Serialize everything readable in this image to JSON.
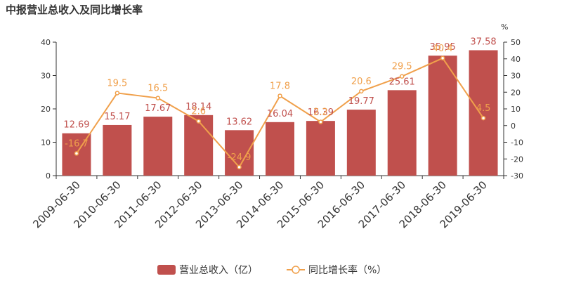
{
  "chart_data": {
    "type": "bar",
    "title": "中报营业总收入及同比增长率",
    "categories": [
      "2009-06-30",
      "2010-06-30",
      "2011-06-30",
      "2012-06-30",
      "2013-06-30",
      "2014-06-30",
      "2015-06-30",
      "2016-06-30",
      "2017-06-30",
      "2018-06-30",
      "2019-06-30"
    ],
    "series": [
      {
        "name": "营业总收入（亿）",
        "type": "bar",
        "axis": "left",
        "color": "#c0504d",
        "values": [
          12.69,
          15.17,
          17.67,
          18.14,
          13.62,
          16.04,
          16.39,
          19.77,
          25.61,
          35.95,
          37.58
        ],
        "labels": [
          "12.69",
          "15.17",
          "17.67",
          "18.14",
          "13.62",
          "16.04",
          "16.39",
          "19.77",
          "25.61",
          "35.95",
          "37.58"
        ]
      },
      {
        "name": "同比增长率（%）",
        "type": "line",
        "axis": "right",
        "color": "#f0a04b",
        "values": [
          -16.7,
          19.5,
          16.5,
          2.6,
          -24.9,
          17.8,
          2.2,
          20.6,
          29.5,
          40.4,
          4.5
        ],
        "labels": [
          "-16.7",
          "19.5",
          "16.5",
          "2.6",
          "-24.9",
          "17.8",
          "2.2",
          "20.6",
          "29.5",
          "40.4",
          "4.5"
        ]
      }
    ],
    "left_axis": {
      "ylim": [
        0,
        40
      ],
      "ticks": [
        "0",
        "10",
        "20",
        "30",
        "40"
      ]
    },
    "right_axis": {
      "ylim": [
        -30,
        50
      ],
      "ticks": [
        "-30",
        "-20",
        "-10",
        "0",
        "10",
        "20",
        "30",
        "40",
        "50"
      ],
      "unit": "%"
    },
    "legend": {
      "placement": "bottom"
    }
  }
}
